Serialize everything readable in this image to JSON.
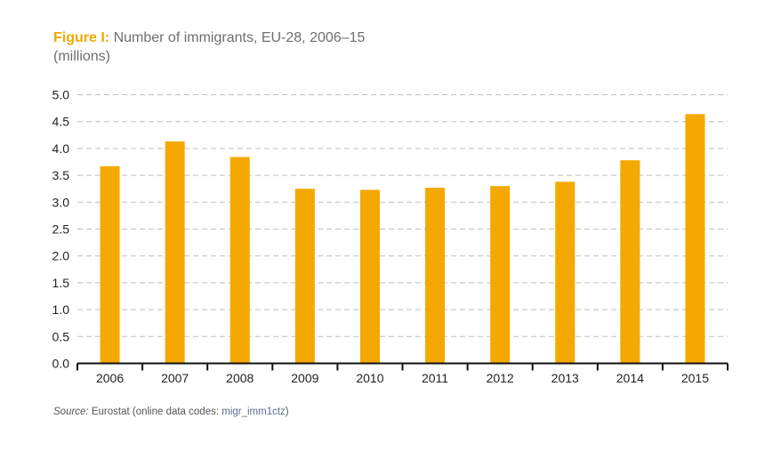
{
  "chart_data": {
    "type": "bar",
    "title_prefix": "Figure I:",
    "title": "Number of immigrants, EU-28, 2006–15",
    "subtitle": "(millions)",
    "categories": [
      "2006",
      "2007",
      "2008",
      "2009",
      "2010",
      "2011",
      "2012",
      "2013",
      "2014",
      "2015"
    ],
    "values": [
      3.67,
      4.13,
      3.84,
      3.25,
      3.23,
      3.27,
      3.3,
      3.38,
      3.78,
      4.64
    ],
    "ylim": [
      0,
      5.0
    ],
    "yticks": [
      "0.0",
      "0.5",
      "1.0",
      "1.5",
      "2.0",
      "2.5",
      "3.0",
      "3.5",
      "4.0",
      "4.5",
      "5.0"
    ],
    "grid": true,
    "bar_color": "#f5a800",
    "grid_color": "#bfbfbf"
  },
  "source": {
    "label": "Source:",
    "text": " Eurostat (online data codes: ",
    "code": "migr_imm1ctz",
    "close": ")"
  }
}
